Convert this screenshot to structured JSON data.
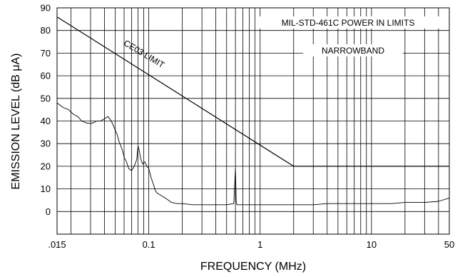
{
  "chart_data": {
    "type": "line",
    "title": "",
    "xlabel": "FREQUENCY (MHz)",
    "ylabel": "EMISSION LEVEL (dB μA)",
    "x_scale": "log",
    "xlim": [
      0.015,
      50
    ],
    "ylim": [
      -10,
      90
    ],
    "grid": true,
    "x_tick_labels": [
      {
        "value": 0.015,
        "label": ".015"
      },
      {
        "value": 0.1,
        "label": "0.1"
      },
      {
        "value": 1,
        "label": "1"
      },
      {
        "value": 10,
        "label": "10"
      },
      {
        "value": 50,
        "label": "50"
      }
    ],
    "y_ticks": [
      0,
      10,
      20,
      30,
      40,
      50,
      60,
      70,
      80,
      90
    ],
    "annotations": {
      "limit_label": "CE03 LIMIT",
      "box_line1": "MIL-STD-461C POWER IN LIMITS",
      "box_line2": "NARROWBAND"
    },
    "series": [
      {
        "name": "CE03 LIMIT",
        "x": [
          0.015,
          2,
          50
        ],
        "y": [
          86,
          20,
          20
        ]
      },
      {
        "x": [
          0.015,
          0.017,
          0.019,
          0.021,
          0.023,
          0.025,
          0.028,
          0.031,
          0.034,
          0.037,
          0.04,
          0.043,
          0.046,
          0.048,
          0.05,
          0.052,
          0.054,
          0.056,
          0.058,
          0.06,
          0.063,
          0.066,
          0.07,
          0.074,
          0.078,
          0.08,
          0.082,
          0.085,
          0.088,
          0.092,
          0.096,
          0.1,
          0.105,
          0.11,
          0.115,
          0.12,
          0.13,
          0.14,
          0.15,
          0.16,
          0.18,
          0.2,
          0.25,
          0.3,
          0.4,
          0.5,
          0.58,
          0.6,
          0.61,
          0.62,
          0.65,
          0.7,
          0.8,
          1,
          1.5,
          2,
          3,
          4,
          5,
          7,
          10,
          15,
          20,
          30,
          40,
          50
        ],
        "y": [
          48,
          46,
          45,
          43,
          42,
          40,
          39,
          39,
          40,
          40,
          41,
          42,
          40,
          38,
          36,
          34,
          31,
          29,
          27,
          24,
          22,
          19,
          18,
          20,
          23,
          29,
          27,
          23,
          21,
          22,
          20,
          19,
          15,
          12,
          9,
          8,
          7,
          6,
          5,
          4,
          3.5,
          3.5,
          3,
          3,
          3,
          3,
          3.5,
          19,
          4,
          3,
          3,
          3,
          3,
          3,
          3,
          3,
          3,
          3.5,
          3.5,
          3.5,
          3.5,
          3.5,
          4,
          4,
          4.5,
          6
        ]
      }
    ]
  }
}
